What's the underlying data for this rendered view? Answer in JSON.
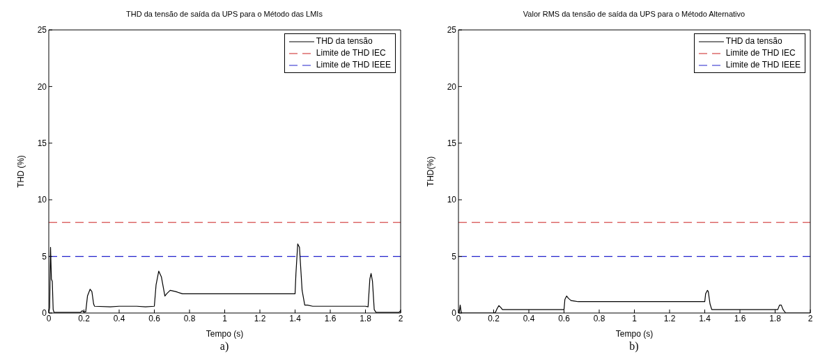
{
  "chart_data": [
    {
      "type": "line",
      "title": "THD da tensão de saída da UPS para o Método das LMIs",
      "xlabel": "Tempo (s)",
      "ylabel": "THD (%)",
      "annotations": [
        "a)"
      ],
      "xlim": [
        0,
        2
      ],
      "ylim": [
        0,
        25
      ],
      "xticks": [
        0,
        0.2,
        0.4,
        0.6,
        0.8,
        1,
        1.2,
        1.4,
        1.6,
        1.8,
        2
      ],
      "yticks": [
        0,
        5,
        10,
        15,
        20,
        25
      ],
      "grid": false,
      "legend": "top right",
      "series": [
        {
          "name": "THD da tensão",
          "color": "#000000",
          "line_style": "solid",
          "x": [
            0,
            0.005,
            0.01,
            0.015,
            0.02,
            0.025,
            0.03,
            0.18,
            0.19,
            0.2,
            0.21,
            0.22,
            0.235,
            0.245,
            0.255,
            0.26,
            0.35,
            0.4,
            0.5,
            0.55,
            0.6,
            0.61,
            0.625,
            0.64,
            0.66,
            0.67,
            0.69,
            0.72,
            0.76,
            0.8,
            1.4,
            1.405,
            1.415,
            1.425,
            1.44,
            1.455,
            1.47,
            1.5,
            1.8,
            1.815,
            1.825,
            1.832,
            1.84,
            1.85,
            1.86,
            1.99,
            2
          ],
          "values": [
            0,
            0.5,
            5.8,
            3,
            2.8,
            0.3,
            0.05,
            0.05,
            0.2,
            0.1,
            0.1,
            1.5,
            2.1,
            1.9,
            0.8,
            0.6,
            0.55,
            0.6,
            0.6,
            0.55,
            0.6,
            2.5,
            3.7,
            3.2,
            1.5,
            1.7,
            2,
            1.9,
            1.7,
            1.7,
            1.7,
            3.5,
            6.1,
            5.8,
            2,
            0.7,
            0.7,
            0.6,
            0.6,
            0.55,
            3,
            3.5,
            2.8,
            0.3,
            0.05,
            0.05,
            0.2
          ]
        },
        {
          "name": "Limite de THD IEC",
          "color": "#cc2222",
          "line_style": "dashed",
          "x": [
            0,
            2
          ],
          "values": [
            8,
            8
          ]
        },
        {
          "name": "Limite de THD IEEE",
          "color": "#2222cc",
          "line_style": "dashed",
          "x": [
            0,
            2
          ],
          "values": [
            5,
            5
          ]
        }
      ]
    },
    {
      "type": "line",
      "title": "Valor RMS da tensão de saída da UPS para o Método Alternativo",
      "xlabel": "Tempo (s)",
      "ylabel": "THD(%)",
      "annotations": [
        "b)"
      ],
      "xlim": [
        0,
        2
      ],
      "ylim": [
        0,
        25
      ],
      "xticks": [
        0,
        0.2,
        0.4,
        0.6,
        0.8,
        1,
        1.2,
        1.4,
        1.6,
        1.8,
        2
      ],
      "yticks": [
        0,
        5,
        10,
        15,
        20,
        25
      ],
      "grid": false,
      "legend": "top right",
      "series": [
        {
          "name": "THD da tensão",
          "color": "#000000",
          "line_style": "solid",
          "x": [
            0,
            0.005,
            0.01,
            0.015,
            0.02,
            0.2,
            0.21,
            0.22,
            0.23,
            0.24,
            0.25,
            0.6,
            0.605,
            0.615,
            0.625,
            0.64,
            0.66,
            0.68,
            1.4,
            1.405,
            1.415,
            1.42,
            1.43,
            1.44,
            1.8,
            1.815,
            1.825,
            1.835,
            1.845,
            1.86,
            2
          ],
          "values": [
            0,
            0.1,
            0.7,
            0.1,
            0,
            0,
            0.05,
            0.4,
            0.65,
            0.5,
            0.3,
            0.3,
            1.2,
            1.5,
            1.3,
            1.1,
            1.05,
            1,
            1,
            1.7,
            2,
            1.9,
            0.8,
            0.3,
            0.3,
            0.3,
            0.7,
            0.7,
            0.3,
            0,
            0
          ]
        },
        {
          "name": "Limite de THD IEC",
          "color": "#cc2222",
          "line_style": "dashed",
          "x": [
            0,
            2
          ],
          "values": [
            8,
            8
          ]
        },
        {
          "name": "Limite de THD IEEE",
          "color": "#2222cc",
          "line_style": "dashed",
          "x": [
            0,
            2
          ],
          "values": [
            5,
            5
          ]
        }
      ]
    }
  ]
}
